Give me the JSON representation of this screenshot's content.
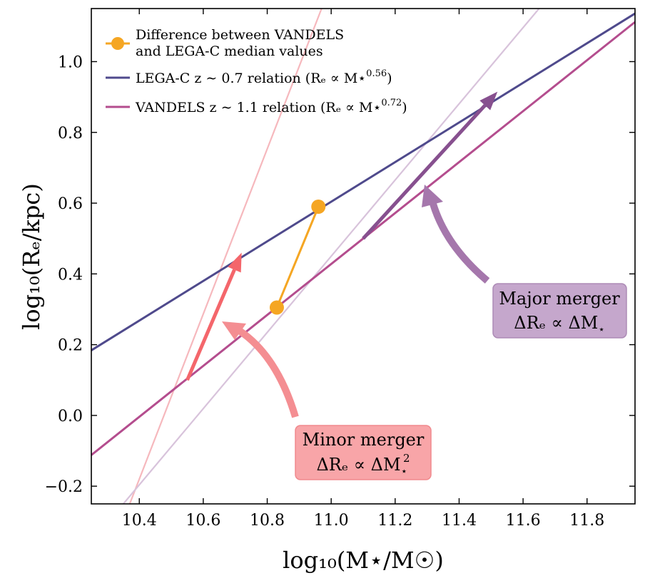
{
  "chart_data": {
    "type": "line",
    "xlabel": "log₁₀(M⋆/M☉)",
    "ylabel": "log₁₀(Rₑ/kpc)",
    "xlim": [
      10.25,
      11.95
    ],
    "ylim": [
      -0.25,
      1.15
    ],
    "xticks": [
      10.4,
      10.6,
      10.8,
      11.0,
      11.2,
      11.4,
      11.6,
      11.8
    ],
    "xtick_labels": [
      "10.4",
      "10.6",
      "10.8",
      "11.0",
      "11.2",
      "11.4",
      "11.6",
      "11.8"
    ],
    "yticks": [
      -0.2,
      0.0,
      0.2,
      0.4,
      0.6,
      0.8,
      1.0
    ],
    "ytick_labels": [
      "−0.2",
      "0.0",
      "0.2",
      "0.4",
      "0.6",
      "0.8",
      "1.0"
    ],
    "grid": false,
    "legend_position": "top-left",
    "series": [
      {
        "name": "LEGA-C z ∼ 0.7 relation (Rₑ ∝ M⋆^0.56)",
        "legend_line1": "LEGA-C z ∼ 0.7 relation (Rₑ ∝ M⋆",
        "legend_exponent": "0.56",
        "legend_suffix": ")",
        "color": "#4f4a8c",
        "x": [
          10.25,
          11.95
        ],
        "y": [
          0.184,
          1.136
        ]
      },
      {
        "name": "VANDELS z ∼ 1.1 relation (Rₑ ∝ M⋆^0.72)",
        "legend_line1": "VANDELS z ∼ 1.1 relation (Rₑ ∝ M⋆",
        "legend_exponent": "0.72",
        "legend_suffix": ")",
        "color": "#b44d8e",
        "x": [
          10.25,
          11.95
        ],
        "y": [
          -0.112,
          1.112
        ]
      },
      {
        "name": "",
        "color": "#f6b8bd",
        "x": [
          10.37,
          10.97
        ],
        "y": [
          -0.25,
          1.15
        ]
      },
      {
        "name": "",
        "color": "#d8c3db",
        "x": [
          10.35,
          11.65
        ],
        "y": [
          -0.25,
          1.15
        ]
      },
      {
        "name": "Difference between VANDELS and LEGA-C median values",
        "legend_line1": "Difference between VANDELS",
        "legend_line2": "and LEGA-C median values",
        "color": "#f5a623",
        "x": [
          10.83,
          10.96
        ],
        "y": [
          0.305,
          0.59
        ]
      }
    ],
    "arrows": [
      {
        "name": "minor-merger-vector",
        "color": "#f4666b",
        "x0": 10.55,
        "y0": 0.1,
        "x1": 10.72,
        "y1": 0.46
      },
      {
        "name": "major-merger-vector",
        "color": "#87508f",
        "x0": 11.1,
        "y0": 0.5,
        "x1": 11.52,
        "y1": 0.915
      }
    ],
    "annotations": [
      {
        "name": "minor-merger",
        "line1": "Minor merger",
        "line2_prefix": "ΔRₑ ∝ ΔM",
        "line2_sub": "⋆",
        "line2_sup": "2",
        "box_color": "#f8a5a8",
        "box_edge": "#f08a8e",
        "arrow_color": "#f48e92"
      },
      {
        "name": "major-merger",
        "line1": "Major merger",
        "line2_prefix": "ΔRₑ ∝ ΔM",
        "line2_sub": "⋆",
        "line2_sup": "",
        "box_color": "#c5a7cc",
        "box_edge": "#ad8bb6",
        "arrow_color": "#a577ac"
      }
    ]
  }
}
